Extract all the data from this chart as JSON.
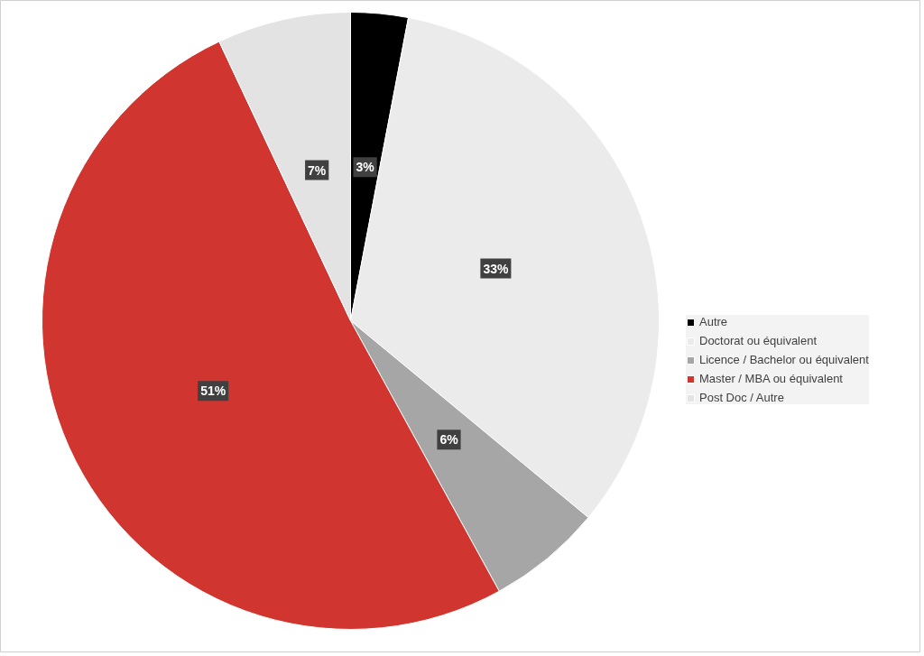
{
  "chart_data": {
    "type": "pie",
    "categories": [
      "Autre",
      "Doctorat ou équivalent",
      "Licence / Bachelor ou équivalent",
      "Master / MBA ou équivalent",
      "Post Doc / Autre"
    ],
    "values": [
      3,
      33,
      6,
      51,
      7
    ],
    "colors": [
      "#000000",
      "#ebebeb",
      "#a6a6a6",
      "#d13530",
      "#e3e3e3"
    ],
    "value_labels": [
      "3%",
      "33%",
      "6%",
      "51%",
      "7%"
    ],
    "legend": "right"
  }
}
